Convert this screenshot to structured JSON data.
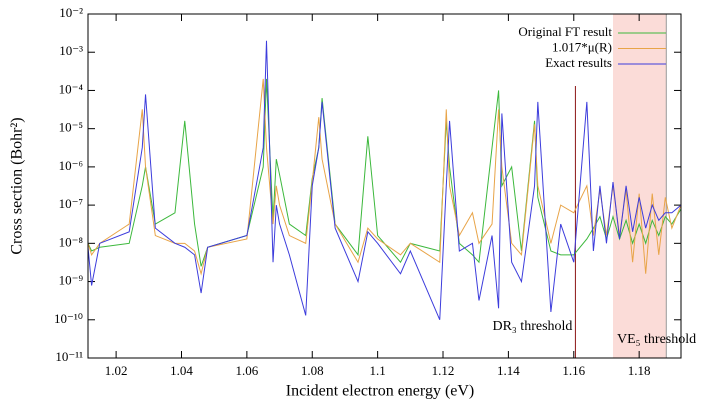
{
  "chart_data": {
    "type": "line",
    "xlabel": "Incident electron energy (eV)",
    "ylabel": "Cross section (Bohr²)",
    "log_y": true,
    "legend": "top-right",
    "xlim": [
      1.0114,
      1.1928
    ],
    "xticks": [
      1.02,
      1.04,
      1.06,
      1.08,
      1.1,
      1.12,
      1.14,
      1.16,
      1.18
    ],
    "ylim": [
      1e-11,
      0.01
    ],
    "yticks": [
      {
        "value": 1e-11,
        "label": "10⁻¹¹"
      },
      {
        "value": 1e-10,
        "label": "10⁻¹⁰"
      },
      {
        "value": 1e-09,
        "label": "10⁻⁹"
      },
      {
        "value": 1e-08,
        "label": "10⁻⁸"
      },
      {
        "value": 1e-07,
        "label": "10⁻⁷"
      },
      {
        "value": 1e-06,
        "label": "10⁻⁶"
      },
      {
        "value": 1e-05,
        "label": "10⁻⁵"
      },
      {
        "value": 0.0001,
        "label": "10⁻⁴"
      },
      {
        "value": 0.001,
        "label": "10⁻³"
      },
      {
        "value": 0.01,
        "label": "10⁻²"
      }
    ],
    "annotations": [
      {
        "text": "DR₃ threshold",
        "x": 1.1605,
        "color": "#8b1515"
      }
    ],
    "shaded_regions": [
      {
        "text": "VE₅ threshold",
        "x": [
          1.172,
          1.1883
        ],
        "color": "#fbdcd8",
        "text_color": "#999999"
      }
    ],
    "x": [
      1.0114,
      1.0125,
      1.015,
      1.024,
      1.028,
      1.029,
      1.032,
      1.038,
      1.041,
      1.044,
      1.046,
      1.048,
      1.06,
      1.065,
      1.066,
      1.068,
      1.069,
      1.07,
      1.073,
      1.078,
      1.08,
      1.082,
      1.083,
      1.087,
      1.094,
      1.097,
      1.1,
      1.107,
      1.11,
      1.119,
      1.121,
      1.122,
      1.125,
      1.129,
      1.131,
      1.135,
      1.137,
      1.138,
      1.141,
      1.144,
      1.148,
      1.149,
      1.153,
      1.156,
      1.16,
      1.164,
      1.166,
      1.168,
      1.17,
      1.172,
      1.174,
      1.176,
      1.178,
      1.18,
      1.182,
      1.184,
      1.186,
      1.188,
      1.19,
      1.1928
    ],
    "series": [
      {
        "name": "Original FT result",
        "color": "#3cb83c",
        "values": [
          1e-08,
          6.3e-09,
          7.9e-09,
          1e-08,
          3.2e-07,
          1e-06,
          3.2e-08,
          6.3e-08,
          1.6e-05,
          3.2e-08,
          2.5e-09,
          7.9e-09,
          1.6e-08,
          1e-06,
          0.0002,
          4e-08,
          1.6e-06,
          6.3e-07,
          3.2e-08,
          1.6e-08,
          5e-07,
          3.2e-06,
          6.3e-05,
          3.2e-08,
          5e-09,
          6.3e-06,
          1.6e-08,
          3.2e-09,
          1e-08,
          6.3e-09,
          1.6e-05,
          1e-06,
          1e-08,
          5e-09,
          3.2e-09,
          3.2e-06,
          0.0001,
          3.2e-07,
          1e-06,
          6.3e-09,
          1.6e-05,
          1.6e-07,
          6.3e-09,
          5e-09,
          5e-09,
          1.3e-08,
          2.5e-08,
          5e-08,
          1.3e-08,
          5e-08,
          1.3e-08,
          4e-08,
          1e-08,
          3.2e-08,
          1e-08,
          4e-08,
          1.6e-08,
          5e-08,
          3.2e-08,
          7.9e-08
        ]
      },
      {
        "name": "1.017*μ(R)",
        "color": "#e8a448",
        "values": [
          1e-08,
          5e-09,
          1e-08,
          3.2e-08,
          3.2e-05,
          1e-06,
          1.6e-08,
          1e-08,
          1e-08,
          6.3e-09,
          1.6e-09,
          7.9e-09,
          1.3e-08,
          0.0002,
          3.2e-06,
          3.2e-08,
          3.2e-07,
          1e-07,
          1.6e-08,
          1e-08,
          4e-07,
          2e-05,
          1.6e-06,
          3.2e-08,
          3.2e-09,
          2.5e-08,
          1.3e-08,
          5e-09,
          1e-08,
          3.2e-09,
          3.2e-05,
          3.2e-07,
          1.6e-08,
          6.3e-08,
          1e-08,
          3.2e-08,
          3.2e-05,
          1e-06,
          1e-08,
          5e-09,
          1.3e-05,
          3.2e-07,
          1e-08,
          1e-07,
          6.3e-08,
          3.2e-07,
          1.6e-08,
          2.5e-07,
          1.6e-08,
          3.2e-07,
          1.6e-08,
          2.5e-07,
          3.2e-09,
          2e-07,
          1.6e-09,
          2e-07,
          5e-09,
          1.6e-07,
          2.5e-08,
          1e-07
        ]
      },
      {
        "name": "Exact results",
        "color": "#3c3cdc",
        "values": [
          7.9e-09,
          7.9e-10,
          1e-08,
          2e-08,
          3.2e-06,
          7.9e-05,
          2.5e-08,
          1e-08,
          7.9e-09,
          5e-09,
          5e-10,
          7.9e-09,
          1.6e-08,
          3.2e-06,
          0.002,
          3.2e-09,
          1e-07,
          3.2e-08,
          5e-09,
          1.3e-10,
          3.2e-07,
          3.2e-06,
          5e-05,
          2.5e-08,
          1e-09,
          2e-08,
          1e-08,
          1.6e-09,
          6.3e-09,
          1e-10,
          3.2e-07,
          1.6e-05,
          6.3e-09,
          1e-08,
          3.2e-10,
          1.6e-08,
          2e-10,
          2.5e-05,
          3.2e-09,
          1e-09,
          3.2e-07,
          5e-05,
          1.6e-10,
          3.2e-08,
          3.2e-09,
          5e-05,
          6.3e-09,
          3.2e-07,
          1e-08,
          4e-07,
          1.3e-08,
          3.2e-07,
          2e-08,
          1.6e-07,
          2.5e-08,
          1e-07,
          4e-08,
          6.3e-08,
          6.3e-08,
          1e-07
        ]
      }
    ]
  }
}
